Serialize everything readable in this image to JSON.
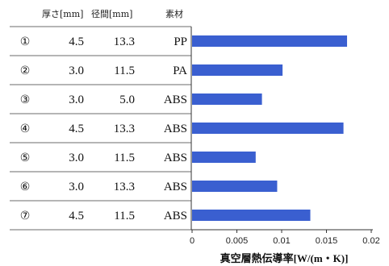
{
  "chart_data": {
    "type": "bar",
    "orientation": "horizontal",
    "categories": [
      "①",
      "②",
      "③",
      "④",
      "⑤",
      "⑥",
      "⑦"
    ],
    "table_columns": [
      "厚さ[mm]",
      "径間[mm]",
      "素材"
    ],
    "table_rows": [
      [
        "4.5",
        "13.3",
        "PP"
      ],
      [
        "3.0",
        "11.5",
        "PA"
      ],
      [
        "3.0",
        "5.0",
        "ABS"
      ],
      [
        "4.5",
        "13.3",
        "ABS"
      ],
      [
        "3.0",
        "11.5",
        "ABS"
      ],
      [
        "3.0",
        "13.3",
        "ABS"
      ],
      [
        "4.5",
        "11.5",
        "ABS"
      ]
    ],
    "values": [
      0.0173,
      0.0101,
      0.0078,
      0.0169,
      0.0071,
      0.0095,
      0.0132
    ],
    "xlabel": "真空層熱伝導率[W/(m・K)]",
    "xlim": [
      0,
      0.02
    ],
    "xticks": [
      "0",
      "0.005",
      "0.01",
      "0.015",
      "0.02"
    ],
    "grid": false,
    "bar_color": "#3a5fd0"
  }
}
